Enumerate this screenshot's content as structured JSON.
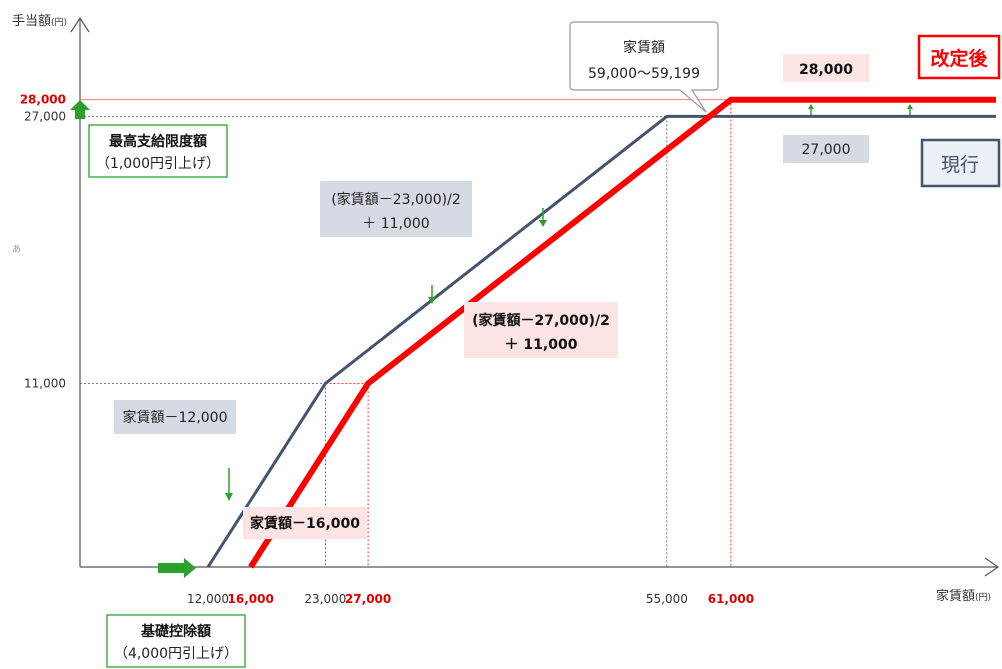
{
  "chart_data": {
    "type": "line",
    "title": "",
    "ylabel": "手当額",
    "ylabel_unit": "(円)",
    "xlabel": "家賃額",
    "xlabel_unit": "(円)",
    "y_mid_glyph": "あ",
    "grid": false,
    "xlim": [
      0,
      100000
    ],
    "ylim": [
      0,
      30000
    ],
    "x_ticks": [
      {
        "value": 12000,
        "label": "12,000",
        "color": "#333333"
      },
      {
        "value": 16000,
        "label": "16,000",
        "color": "#e00000"
      },
      {
        "value": 23000,
        "label": "23,000",
        "color": "#333333"
      },
      {
        "value": 27000,
        "label": "27,000",
        "color": "#e00000"
      },
      {
        "value": 55000,
        "label": "55,000",
        "color": "#333333"
      },
      {
        "value": 61000,
        "label": "61,000",
        "color": "#e00000"
      }
    ],
    "y_ticks": [
      {
        "value": 11000,
        "label": "11,000",
        "color": "#333333"
      },
      {
        "value": 27000,
        "label": "27,000",
        "color": "#333333"
      },
      {
        "value": 28000,
        "label": "28,000",
        "color": "#e00000"
      }
    ],
    "series": [
      {
        "name": "現行",
        "color": "#44546a",
        "x": [
          12000,
          23000,
          55000,
          100000
        ],
        "y": [
          0,
          11000,
          27000,
          27000
        ]
      },
      {
        "name": "改定後",
        "color": "#ff0000",
        "x": [
          16000,
          27000,
          61000,
          100000
        ],
        "y": [
          0,
          11000,
          28000,
          28000
        ]
      }
    ],
    "annotations": {
      "rent_box_title": "家賃額",
      "rent_box_range": "59,000～59,199",
      "max_box_title": "最高支給限度額",
      "max_box_sub": "（1,000円引上げ）",
      "base_box_title": "基礎控除額",
      "base_box_sub": "（4,000円引上げ）",
      "gray_formula_1": "家賃額－12,000",
      "gray_formula_2a": "(家賃額－23,000)/2",
      "gray_formula_2b": "＋ 11,000",
      "gray_cap": "27,000",
      "red_formula_1": "家賃額－16,000",
      "red_formula_2a": "(家賃額－27,000)/2",
      "red_formula_2b": "＋ 11,000",
      "red_cap": "28,000",
      "legend_new": "改定後",
      "legend_current": "現行"
    }
  }
}
